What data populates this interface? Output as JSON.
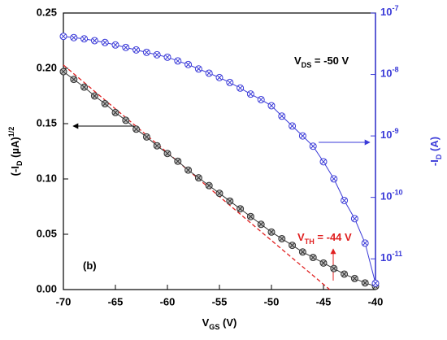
{
  "chart_data": {
    "type": "line",
    "xlabel": [
      "V",
      "GS",
      " (V)"
    ],
    "ylabel": [
      "(-I",
      "D",
      " (µA)",
      "1/2"
    ],
    "y2label": [
      "-I",
      "D",
      " (A)"
    ],
    "x": [
      -70,
      -69,
      -68,
      -67,
      -66,
      -65,
      -64,
      -63,
      -62,
      -61,
      -60,
      -59,
      -58,
      -57,
      -56,
      -55,
      -54,
      -53,
      -52,
      -51,
      -50,
      -49,
      -48,
      -47,
      -46,
      -45,
      -44,
      -43,
      -42,
      -41,
      -40
    ],
    "series": [
      {
        "color": "#333333",
        "values": [
          0.197,
          0.19,
          0.183,
          0.175,
          0.168,
          0.16,
          0.153,
          0.145,
          0.138,
          0.13,
          0.123,
          0.116,
          0.108,
          0.101,
          0.094,
          0.087,
          0.08,
          0.073,
          0.066,
          0.059,
          0.052,
          0.046,
          0.04,
          0.034,
          0.029,
          0.024,
          0.019,
          0.014,
          0.01,
          0.006,
          0.003
        ]
      },
      {
        "color": "#3a3ad8",
        "axis": "y2",
        "values": [
          4.17e-08,
          3.98e-08,
          3.8e-08,
          3.55e-08,
          3.31e-08,
          3.02e-08,
          2.75e-08,
          2.51e-08,
          2.29e-08,
          2.09e-08,
          1.91e-08,
          1.66e-08,
          1.45e-08,
          1.23e-08,
          1.05e-08,
          8.9e-09,
          7.4e-09,
          6e-09,
          4.8e-09,
          3.9e-09,
          3.1e-09,
          2.1e-09,
          1.45e-09,
          1e-09,
          6.8e-10,
          3.8e-10,
          2e-10,
          8.9e-11,
          4.5e-11,
          1.8e-11,
          4e-12
        ]
      }
    ],
    "fit": {
      "color": "#e02020",
      "x": [
        -70,
        -44.4
      ],
      "values": [
        0.203,
        0
      ]
    },
    "xlim": [
      -70,
      -40
    ],
    "xticks": [
      -70,
      -65,
      -60,
      -55,
      -50,
      -45,
      -40
    ],
    "ylim": [
      0,
      0.25
    ],
    "yticks": [
      {
        "value": 0,
        "label": "0.00"
      },
      {
        "value": 0.05,
        "label": "0.05"
      },
      {
        "value": 0.1,
        "label": "0.10"
      },
      {
        "value": 0.15,
        "label": "0.15"
      },
      {
        "value": 0.2,
        "label": "0.20"
      },
      {
        "value": 0.25,
        "label": "0.25"
      }
    ],
    "y2lim": [
      3.16e-12,
      1e-07
    ],
    "y2scale": "log",
    "y2ticks": [
      {
        "value": 1e-11,
        "label": [
          "10",
          "-11"
        ]
      },
      {
        "value": 1e-10,
        "label": [
          "10",
          "-10"
        ]
      },
      {
        "value": 1e-09,
        "label": [
          "10",
          "-9"
        ]
      },
      {
        "value": 1e-08,
        "label": [
          "10",
          "-8"
        ]
      },
      {
        "value": 1e-07,
        "label": [
          "10",
          "-7"
        ]
      }
    ],
    "annotations": [
      {
        "parts": [
          "V",
          "DS",
          " =  -50 V"
        ]
      },
      {
        "parts": [
          "V",
          "TH",
          " =  -44 V"
        ]
      },
      {
        "parts": [
          "(b)"
        ]
      }
    ]
  }
}
